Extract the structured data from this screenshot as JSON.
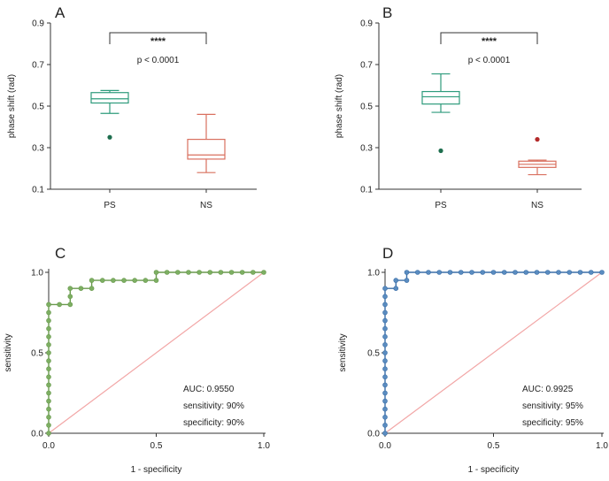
{
  "chart_data": [
    {
      "type": "box",
      "panel": "A",
      "ylabel": "phase shift (rad)",
      "ylim": [
        0.1,
        0.9
      ],
      "yticks": [
        0.1,
        0.3,
        0.5,
        0.7,
        0.9
      ],
      "ytick_labels": [
        "0.1",
        "0.3",
        "0.5",
        "0.7",
        "0.9"
      ],
      "categories": [
        "PS",
        "NS"
      ],
      "boxes": [
        {
          "name": "PS",
          "whisker_low": 0.465,
          "q1": 0.515,
          "median": 0.535,
          "q3": 0.565,
          "whisker_high": 0.575,
          "outliers": [
            0.35
          ],
          "color": "#2e9b7c",
          "outlier_color": "#1e6e4e"
        },
        {
          "name": "NS",
          "whisker_low": 0.18,
          "q1": 0.245,
          "median": 0.265,
          "q3": 0.34,
          "whisker_high": 0.46,
          "outliers": [],
          "color": "#d9705f",
          "outlier_color": "#b32a2a"
        }
      ],
      "significance": "****",
      "p_text": "p < 0.0001"
    },
    {
      "type": "box",
      "panel": "B",
      "ylabel": "phase shift (rad)",
      "ylim": [
        0.1,
        0.9
      ],
      "yticks": [
        0.1,
        0.3,
        0.5,
        0.7,
        0.9
      ],
      "ytick_labels": [
        "0.1",
        "0.3",
        "0.5",
        "0.7",
        "0.9"
      ],
      "categories": [
        "PS",
        "NS"
      ],
      "boxes": [
        {
          "name": "PS",
          "whisker_low": 0.47,
          "q1": 0.51,
          "median": 0.545,
          "q3": 0.57,
          "whisker_high": 0.655,
          "outliers": [
            0.285
          ],
          "color": "#2e9b7c",
          "outlier_color": "#1e6e4e"
        },
        {
          "name": "NS",
          "whisker_low": 0.17,
          "q1": 0.205,
          "median": 0.22,
          "q3": 0.235,
          "whisker_high": 0.24,
          "outliers": [
            0.34
          ],
          "color": "#d9705f",
          "outlier_color": "#b32a2a"
        }
      ],
      "significance": "****",
      "p_text": "p < 0.0001"
    },
    {
      "type": "line",
      "panel": "C",
      "xlabel": "1 - specificity",
      "ylabel": "sensitivity",
      "xlim": [
        0,
        1
      ],
      "ylim": [
        0,
        1
      ],
      "xticks": [
        0,
        0.5,
        1
      ],
      "xtick_labels": [
        "0.0",
        "0.5",
        "1.0"
      ],
      "yticks": [
        0,
        0.5,
        1
      ],
      "ytick_labels": [
        "0.0",
        "0.5",
        "1.0"
      ],
      "color": "#6a9a4e",
      "point_color": "#7daf63",
      "roc_points": [
        [
          0,
          0
        ],
        [
          0,
          0.05
        ],
        [
          0,
          0.1
        ],
        [
          0,
          0.15
        ],
        [
          0,
          0.2
        ],
        [
          0,
          0.25
        ],
        [
          0,
          0.3
        ],
        [
          0,
          0.35
        ],
        [
          0,
          0.4
        ],
        [
          0,
          0.45
        ],
        [
          0,
          0.5
        ],
        [
          0,
          0.55
        ],
        [
          0,
          0.6
        ],
        [
          0,
          0.65
        ],
        [
          0,
          0.7
        ],
        [
          0,
          0.75
        ],
        [
          0,
          0.8
        ],
        [
          0.05,
          0.8
        ],
        [
          0.1,
          0.8
        ],
        [
          0.1,
          0.85
        ],
        [
          0.1,
          0.9
        ],
        [
          0.15,
          0.9
        ],
        [
          0.2,
          0.9
        ],
        [
          0.2,
          0.95
        ],
        [
          0.25,
          0.95
        ],
        [
          0.3,
          0.95
        ],
        [
          0.35,
          0.95
        ],
        [
          0.4,
          0.95
        ],
        [
          0.45,
          0.95
        ],
        [
          0.5,
          0.95
        ],
        [
          0.5,
          1
        ],
        [
          0.55,
          1
        ],
        [
          0.6,
          1
        ],
        [
          0.65,
          1
        ],
        [
          0.7,
          1
        ],
        [
          0.75,
          1
        ],
        [
          0.8,
          1
        ],
        [
          0.85,
          1
        ],
        [
          0.9,
          1
        ],
        [
          0.95,
          1
        ],
        [
          1,
          1
        ]
      ],
      "reference_color": "#f2a6a6",
      "annotations": [
        "AUC: 0.9550",
        "sensitivity: 90%",
        "specificity: 90%"
      ]
    },
    {
      "type": "line",
      "panel": "D",
      "xlabel": "1 - specificity",
      "ylabel": "sensitivity",
      "xlim": [
        0,
        1
      ],
      "ylim": [
        0,
        1
      ],
      "xticks": [
        0,
        0.5,
        1
      ],
      "xtick_labels": [
        "0.0",
        "0.5",
        "1.0"
      ],
      "yticks": [
        0,
        0.5,
        1
      ],
      "ytick_labels": [
        "0.0",
        "0.5",
        "1.0"
      ],
      "color": "#3b6fa8",
      "point_color": "#5a8cc0",
      "roc_points": [
        [
          0,
          0
        ],
        [
          0,
          0.05
        ],
        [
          0,
          0.1
        ],
        [
          0,
          0.15
        ],
        [
          0,
          0.2
        ],
        [
          0,
          0.25
        ],
        [
          0,
          0.3
        ],
        [
          0,
          0.35
        ],
        [
          0,
          0.4
        ],
        [
          0,
          0.45
        ],
        [
          0,
          0.5
        ],
        [
          0,
          0.55
        ],
        [
          0,
          0.6
        ],
        [
          0,
          0.65
        ],
        [
          0,
          0.7
        ],
        [
          0,
          0.75
        ],
        [
          0,
          0.8
        ],
        [
          0,
          0.85
        ],
        [
          0,
          0.9
        ],
        [
          0.05,
          0.9
        ],
        [
          0.05,
          0.95
        ],
        [
          0.1,
          0.95
        ],
        [
          0.1,
          1
        ],
        [
          0.15,
          1
        ],
        [
          0.2,
          1
        ],
        [
          0.25,
          1
        ],
        [
          0.3,
          1
        ],
        [
          0.35,
          1
        ],
        [
          0.4,
          1
        ],
        [
          0.45,
          1
        ],
        [
          0.5,
          1
        ],
        [
          0.55,
          1
        ],
        [
          0.6,
          1
        ],
        [
          0.65,
          1
        ],
        [
          0.7,
          1
        ],
        [
          0.75,
          1
        ],
        [
          0.8,
          1
        ],
        [
          0.85,
          1
        ],
        [
          0.9,
          1
        ],
        [
          0.95,
          1
        ],
        [
          1,
          1
        ]
      ],
      "reference_color": "#f2a6a6",
      "annotations": [
        "AUC: 0.9925",
        "sensitivity: 95%",
        "specificity: 95%"
      ]
    }
  ]
}
